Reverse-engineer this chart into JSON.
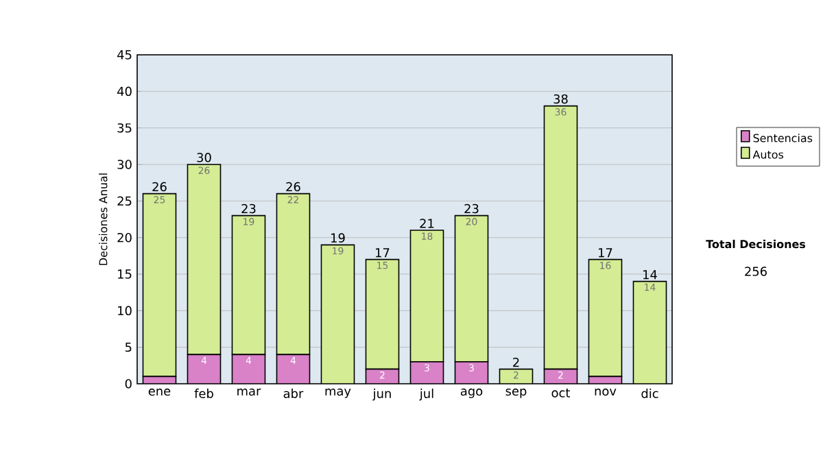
{
  "chart_data": {
    "type": "bar",
    "stacked": true,
    "categories": [
      "ene",
      "feb",
      "mar",
      "abr",
      "may",
      "jun",
      "jul",
      "ago",
      "sep",
      "oct",
      "nov",
      "dic"
    ],
    "series": [
      {
        "name": "Sentencias",
        "color": "#d982c8",
        "values": [
          1,
          4,
          4,
          4,
          0,
          2,
          3,
          3,
          0,
          2,
          1,
          0
        ],
        "value_labels": [
          null,
          "4",
          "4",
          "4",
          null,
          "2",
          "3",
          "3",
          null,
          "2",
          null,
          null
        ]
      },
      {
        "name": "Autos",
        "color": "#d4ec94",
        "values": [
          25,
          26,
          19,
          22,
          19,
          15,
          18,
          20,
          2,
          36,
          16,
          14
        ],
        "value_labels": [
          "25",
          "26",
          "19",
          "22",
          "19",
          "15",
          "18",
          "20",
          "2",
          "36",
          "16",
          "14"
        ]
      }
    ],
    "totals": [
      "26",
      "30",
      "23",
      "26",
      "19",
      "17",
      "21",
      "23",
      "2",
      "38",
      "17",
      "14"
    ],
    "ylabel": "Decisiones Anual",
    "ylim": [
      0,
      45
    ],
    "yticks": [
      0,
      5,
      10,
      15,
      20,
      25,
      30,
      35,
      40,
      45
    ],
    "grid": "y",
    "legend": "right",
    "annotations": [
      "Total Decisiones",
      "256"
    ]
  }
}
